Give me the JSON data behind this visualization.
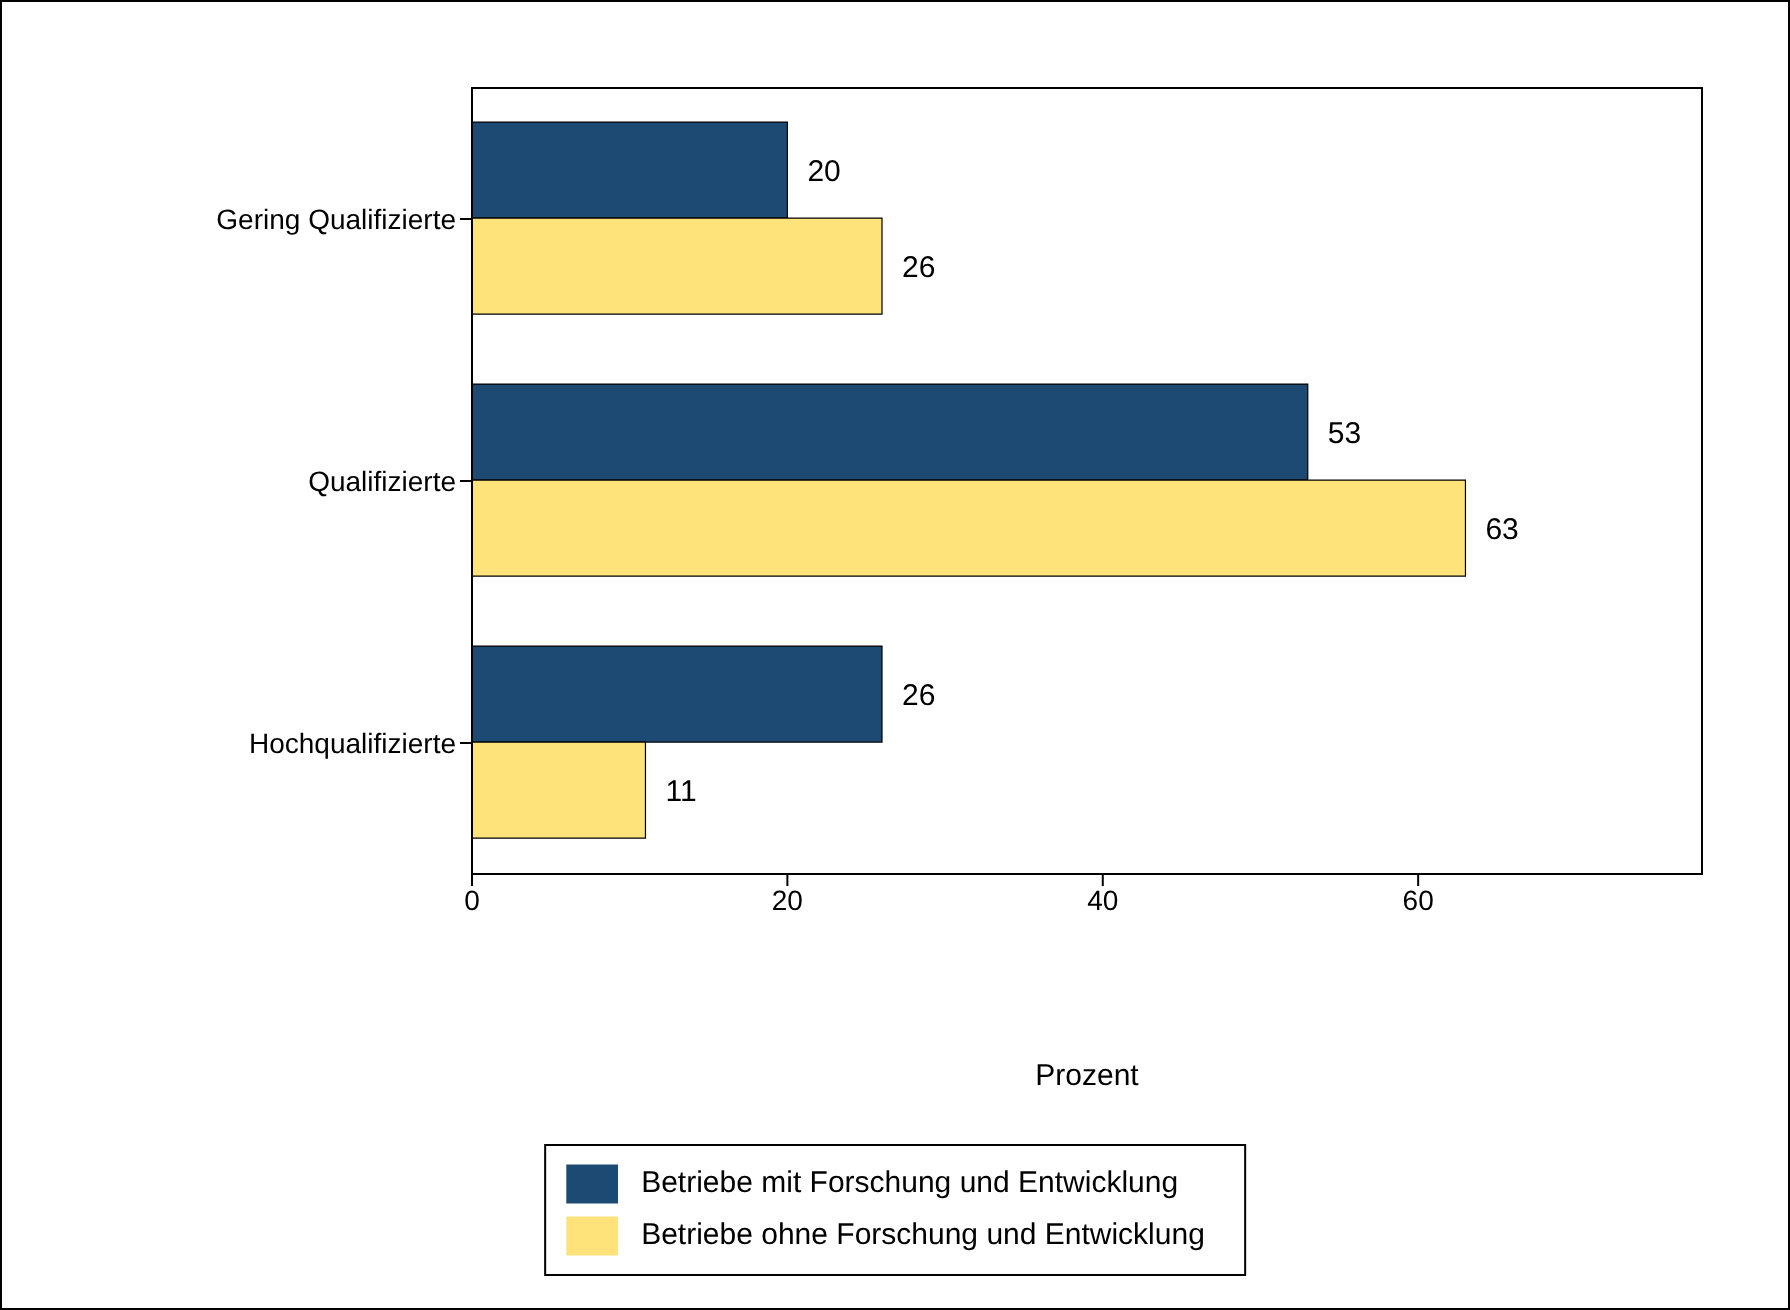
{
  "chart_data": {
    "type": "bar",
    "orientation": "horizontal",
    "categories": [
      "Gering Qualifizierte",
      "Qualifizierte",
      "Hochqualifizierte"
    ],
    "series": [
      {
        "name": "Betriebe mit Forschung und Entwicklung",
        "color": "#1c4a72",
        "values": [
          20,
          53,
          26
        ]
      },
      {
        "name": "Betriebe ohne Forschung und Entwicklung",
        "color": "#fde37a",
        "values": [
          26,
          63,
          11
        ]
      }
    ],
    "xlabel": "Prozent",
    "xlim": [
      0,
      78
    ],
    "xticks": [
      0,
      20,
      40,
      60
    ],
    "data_labels": true,
    "grid": false,
    "legend": "bottom"
  }
}
